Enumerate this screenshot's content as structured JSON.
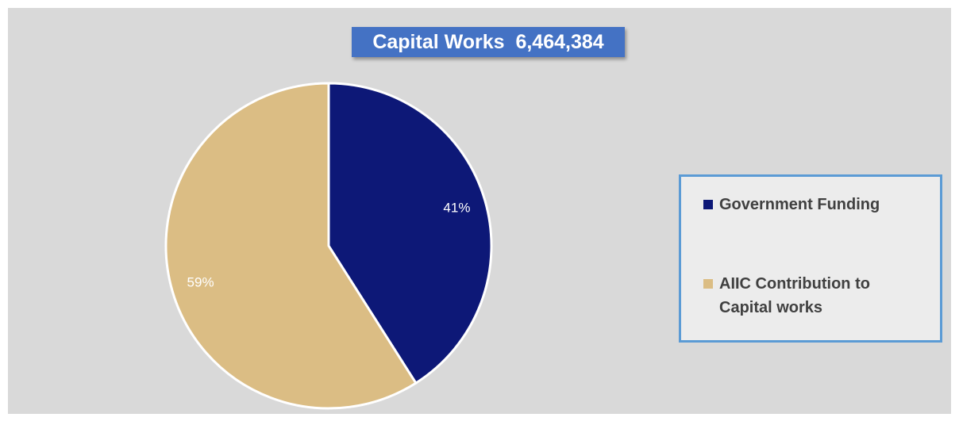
{
  "chart_data": {
    "type": "pie",
    "title": "Capital Works  6,464,384",
    "categories": [
      "Government Funding",
      "AIIC Contribution to Capital works"
    ],
    "values": [
      41,
      59
    ],
    "value_labels": [
      "41%",
      "59%"
    ],
    "colors": [
      "#0d1877",
      "#dbbd84"
    ],
    "legend": "right"
  }
}
